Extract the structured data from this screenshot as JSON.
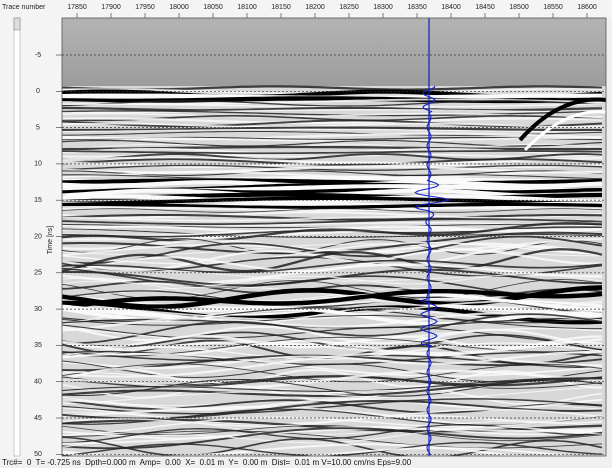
{
  "x_axis": {
    "label": "Trace number",
    "ticks": [
      17850,
      17900,
      17950,
      18000,
      18050,
      18100,
      18150,
      18200,
      18250,
      18300,
      18350,
      18400,
      18450,
      18500,
      18550,
      18600
    ]
  },
  "y_axis": {
    "label": "Time [ns]",
    "ticks": [
      -5,
      0,
      5,
      10,
      15,
      20,
      25,
      30,
      35,
      40,
      45,
      50
    ]
  },
  "status_bar": "Trc#=  0  T= -0.725 ns  Dpth=0.000 m  Amp=  0.00  X=  0.01 m  Y=  0.00 m  Dist=  0.01 m V=10.00 cm/ns Eps=9.00"
}
